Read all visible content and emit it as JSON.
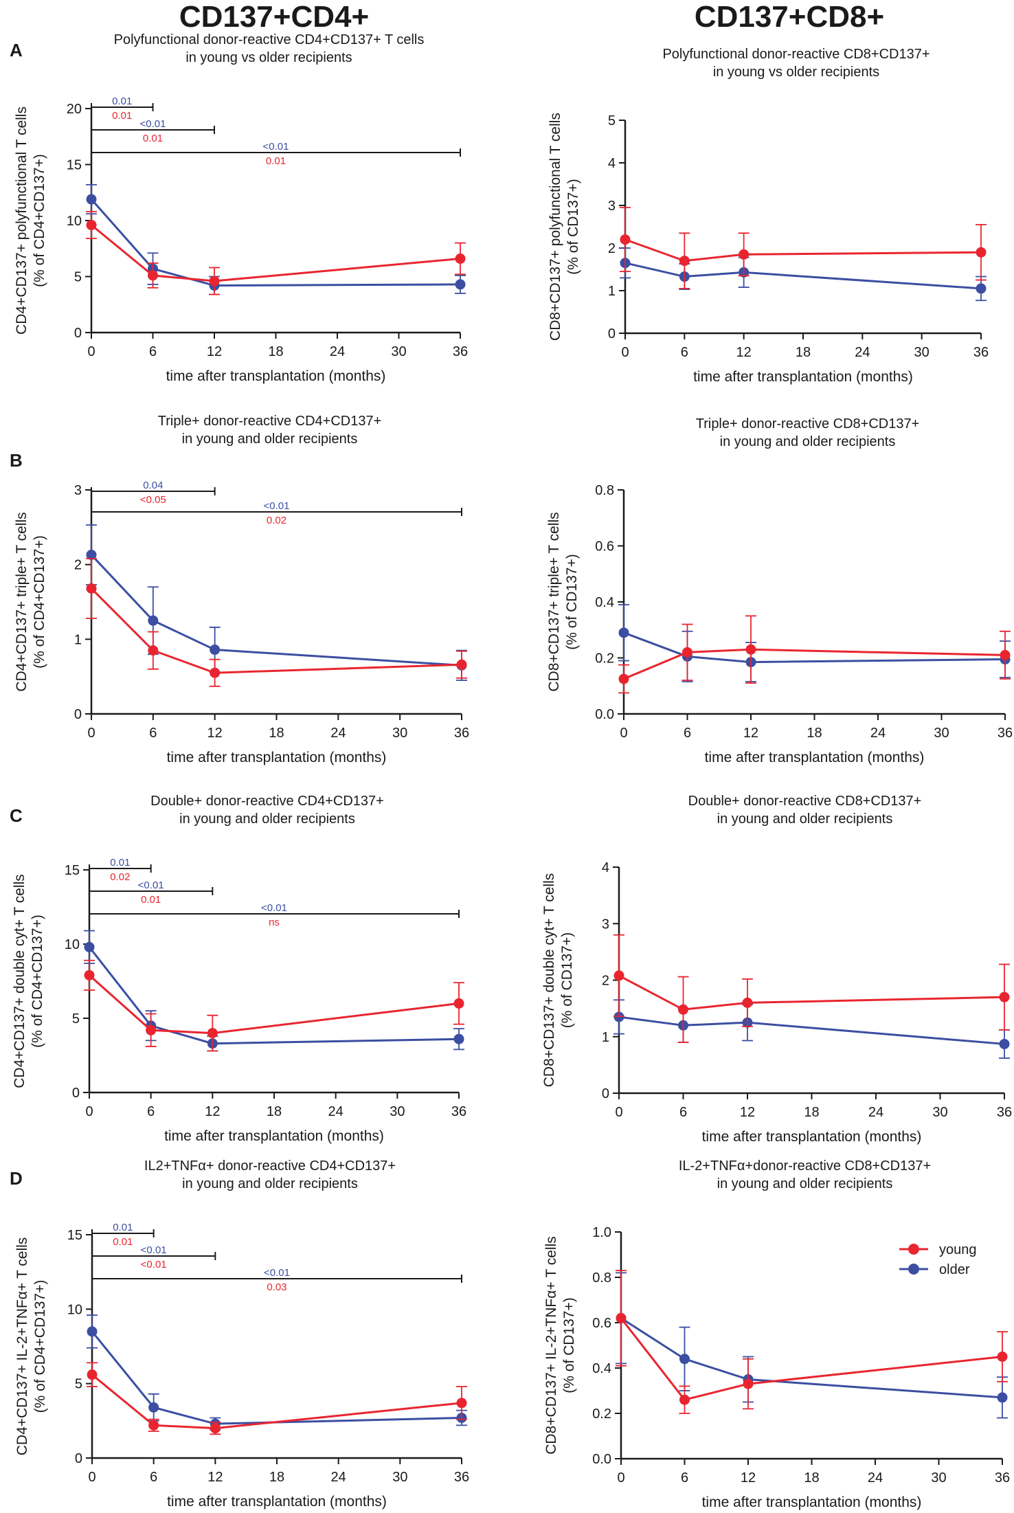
{
  "headers": {
    "left": "CD137+CD4+",
    "right": "CD137+CD8+"
  },
  "panels": [
    "A",
    "B",
    "C",
    "D"
  ],
  "colors": {
    "young": "#e8252f",
    "older": "#3b4ea2",
    "axis": "#1a1a1a"
  },
  "legend": {
    "young": "young",
    "older": "older"
  },
  "chart_data": [
    {
      "id": "A-left",
      "type": "line",
      "title": [
        "Polyfunctional donor-reactive CD4+CD137+ T cells",
        "in young vs older recipients"
      ],
      "ylabel": [
        "CD4+CD137+ polyfunctional T cells",
        "(% of CD4+CD137+)"
      ],
      "xlabel": "time after transplantation (months)",
      "x": [
        0,
        6,
        12,
        36
      ],
      "xticks": [
        0,
        6,
        12,
        18,
        24,
        30,
        36
      ],
      "xlim": [
        0,
        36
      ],
      "ylim": [
        0,
        20
      ],
      "yticks": [
        0,
        5,
        10,
        15,
        20
      ],
      "series": [
        {
          "name": "older",
          "values": [
            11.9,
            5.7,
            4.2,
            4.3
          ],
          "err": [
            1.3,
            1.4,
            0.8,
            0.8
          ]
        },
        {
          "name": "young",
          "values": [
            9.6,
            5.1,
            4.6,
            6.6
          ],
          "err": [
            1.2,
            1.1,
            1.2,
            1.4
          ]
        }
      ],
      "significance": [
        {
          "from": 0,
          "to": 6,
          "older": "0.01",
          "young": "0.01"
        },
        {
          "from": 0,
          "to": 12,
          "older": "<0.01",
          "young": "0.01"
        },
        {
          "from": 0,
          "to": 36,
          "older": "<0.01",
          "young": "0.01"
        }
      ]
    },
    {
      "id": "A-right",
      "type": "line",
      "title": [
        "Polyfunctional donor-reactive CD8+CD137+",
        "in young vs older recipients"
      ],
      "ylabel": [
        "CD8+CD137+ polyfunctional T cells",
        "(% of CD137+)"
      ],
      "xlabel": "time after transplantation (months)",
      "x": [
        0,
        6,
        12,
        36
      ],
      "xticks": [
        0,
        6,
        12,
        18,
        24,
        30,
        36
      ],
      "xlim": [
        0,
        36
      ],
      "ylim": [
        0,
        5
      ],
      "yticks": [
        0,
        1,
        2,
        3,
        4,
        5
      ],
      "series": [
        {
          "name": "older",
          "values": [
            1.65,
            1.33,
            1.43,
            1.05
          ],
          "err": [
            0.35,
            0.3,
            0.35,
            0.28
          ]
        },
        {
          "name": "young",
          "values": [
            2.2,
            1.7,
            1.85,
            1.9
          ],
          "err": [
            0.75,
            0.65,
            0.5,
            0.65
          ]
        }
      ],
      "significance": []
    },
    {
      "id": "B-left",
      "type": "line",
      "title": [
        "Triple+ donor-reactive CD4+CD137+",
        "in young and older recipients"
      ],
      "ylabel": [
        "CD4+CD137+ triple+ T cells",
        "(% of CD4+CD137+)"
      ],
      "xlabel": "time after transplantation (months)",
      "x": [
        0,
        6,
        12,
        36
      ],
      "xticks": [
        0,
        6,
        12,
        18,
        24,
        30,
        36
      ],
      "xlim": [
        0,
        36
      ],
      "ylim": [
        0,
        3
      ],
      "yticks": [
        0,
        1,
        2,
        3
      ],
      "series": [
        {
          "name": "older",
          "values": [
            2.13,
            1.25,
            0.86,
            0.65
          ],
          "err": [
            0.4,
            0.45,
            0.3,
            0.2
          ]
        },
        {
          "name": "young",
          "values": [
            1.68,
            0.85,
            0.55,
            0.66
          ],
          "err": [
            0.4,
            0.25,
            0.18,
            0.18
          ]
        }
      ],
      "significance": [
        {
          "from": 0,
          "to": 12,
          "older": "0.04",
          "young": "<0.05"
        },
        {
          "from": 0,
          "to": 36,
          "older": "<0.01",
          "young": "0.02"
        }
      ]
    },
    {
      "id": "B-right",
      "type": "line",
      "title": [
        "Triple+ donor-reactive CD8+CD137+",
        "in young and older recipients"
      ],
      "ylabel": [
        "CD8+CD137+ triple+ T cells",
        "(% of CD137+)"
      ],
      "xlabel": "time after transplantation (months)",
      "x": [
        0,
        6,
        12,
        36
      ],
      "xticks": [
        0,
        6,
        12,
        18,
        24,
        30,
        36
      ],
      "xlim": [
        0,
        36
      ],
      "ylim": [
        0,
        0.8
      ],
      "yticks": [
        0.0,
        0.2,
        0.4,
        0.6,
        0.8
      ],
      "series": [
        {
          "name": "older",
          "values": [
            0.29,
            0.205,
            0.185,
            0.195
          ],
          "err": [
            0.1,
            0.09,
            0.07,
            0.065
          ]
        },
        {
          "name": "young",
          "values": [
            0.125,
            0.22,
            0.23,
            0.21
          ],
          "err": [
            0.05,
            0.1,
            0.12,
            0.085
          ]
        }
      ],
      "significance": []
    },
    {
      "id": "C-left",
      "type": "line",
      "title": [
        "Double+ donor-reactive CD4+CD137+",
        "in young and older recipients"
      ],
      "ylabel": [
        "CD4+CD137+ double cyt+ T cells",
        "(% of CD4+CD137+)"
      ],
      "xlabel": "time after transplantation (months)",
      "x": [
        0,
        6,
        12,
        36
      ],
      "xticks": [
        0,
        6,
        12,
        18,
        24,
        30,
        36
      ],
      "xlim": [
        0,
        36
      ],
      "ylim": [
        0,
        15
      ],
      "yticks": [
        0,
        5,
        10,
        15
      ],
      "series": [
        {
          "name": "older",
          "values": [
            9.8,
            4.5,
            3.3,
            3.6
          ],
          "err": [
            1.1,
            1.0,
            0.5,
            0.7
          ]
        },
        {
          "name": "young",
          "values": [
            7.9,
            4.2,
            4.0,
            6.0
          ],
          "err": [
            1.0,
            1.1,
            1.2,
            1.4
          ]
        }
      ],
      "significance": [
        {
          "from": 0,
          "to": 6,
          "older": "0.01",
          "young": "0.02"
        },
        {
          "from": 0,
          "to": 12,
          "older": "<0.01",
          "young": "0.01"
        },
        {
          "from": 0,
          "to": 36,
          "older": "<0.01",
          "young": "ns"
        }
      ]
    },
    {
      "id": "C-right",
      "type": "line",
      "title": [
        "Double+ donor-reactive CD8+CD137+",
        "in young and older recipients"
      ],
      "ylabel": [
        "CD8+CD137+ double cyt+ T cells",
        "(% of CD137+)"
      ],
      "xlabel": "time after transplantation (months)",
      "x": [
        0,
        6,
        12,
        36
      ],
      "xticks": [
        0,
        6,
        12,
        18,
        24,
        30,
        36
      ],
      "xlim": [
        0,
        36
      ],
      "ylim": [
        0,
        4
      ],
      "yticks": [
        0,
        1,
        2,
        3,
        4
      ],
      "series": [
        {
          "name": "older",
          "values": [
            1.35,
            1.2,
            1.25,
            0.87
          ],
          "err": [
            0.3,
            0.3,
            0.32,
            0.25
          ]
        },
        {
          "name": "young",
          "values": [
            2.08,
            1.48,
            1.6,
            1.7
          ],
          "err": [
            0.72,
            0.58,
            0.42,
            0.58
          ]
        }
      ],
      "significance": []
    },
    {
      "id": "D-left",
      "type": "line",
      "title": [
        "IL2+TNFα+ donor-reactive CD4+CD137+",
        "in young and older recipients"
      ],
      "ylabel": [
        "CD4+CD137+ IL-2+TNFα+ T cells",
        "(% of CD4+CD137+)"
      ],
      "xlabel": "time after transplantation (months)",
      "x": [
        0,
        6,
        12,
        36
      ],
      "xticks": [
        0,
        6,
        12,
        18,
        24,
        30,
        36
      ],
      "xlim": [
        0,
        36
      ],
      "ylim": [
        0,
        15
      ],
      "yticks": [
        0,
        5,
        10,
        15
      ],
      "series": [
        {
          "name": "older",
          "values": [
            8.5,
            3.4,
            2.3,
            2.7
          ],
          "err": [
            1.1,
            0.9,
            0.4,
            0.5
          ]
        },
        {
          "name": "young",
          "values": [
            5.6,
            2.2,
            2.0,
            3.7
          ],
          "err": [
            0.8,
            0.4,
            0.4,
            1.1
          ]
        }
      ],
      "significance": [
        {
          "from": 0,
          "to": 6,
          "older": "0.01",
          "young": "0.01"
        },
        {
          "from": 0,
          "to": 12,
          "older": "<0.01",
          "young": "<0.01"
        },
        {
          "from": 0,
          "to": 36,
          "older": "<0.01",
          "young": "0.03"
        }
      ]
    },
    {
      "id": "D-right",
      "type": "line",
      "title": [
        "IL-2+TNFα+donor-reactive CD8+CD137+",
        "in young and older recipients"
      ],
      "ylabel": [
        "CD8+CD137+ IL-2+TNFα+ T cells",
        "(% of CD137+)"
      ],
      "xlabel": "time after transplantation (months)",
      "x": [
        0,
        6,
        12,
        36
      ],
      "xticks": [
        0,
        6,
        12,
        18,
        24,
        30,
        36
      ],
      "xlim": [
        0,
        36
      ],
      "ylim": [
        0,
        1.0
      ],
      "yticks": [
        0.0,
        0.2,
        0.4,
        0.6,
        0.8,
        1.0
      ],
      "series": [
        {
          "name": "older",
          "values": [
            0.62,
            0.44,
            0.35,
            0.27
          ],
          "err": [
            0.2,
            0.14,
            0.1,
            0.09
          ]
        },
        {
          "name": "young",
          "values": [
            0.62,
            0.26,
            0.33,
            0.45
          ],
          "err": [
            0.21,
            0.06,
            0.11,
            0.11
          ]
        }
      ],
      "significance": [],
      "legend": "top-right"
    }
  ]
}
